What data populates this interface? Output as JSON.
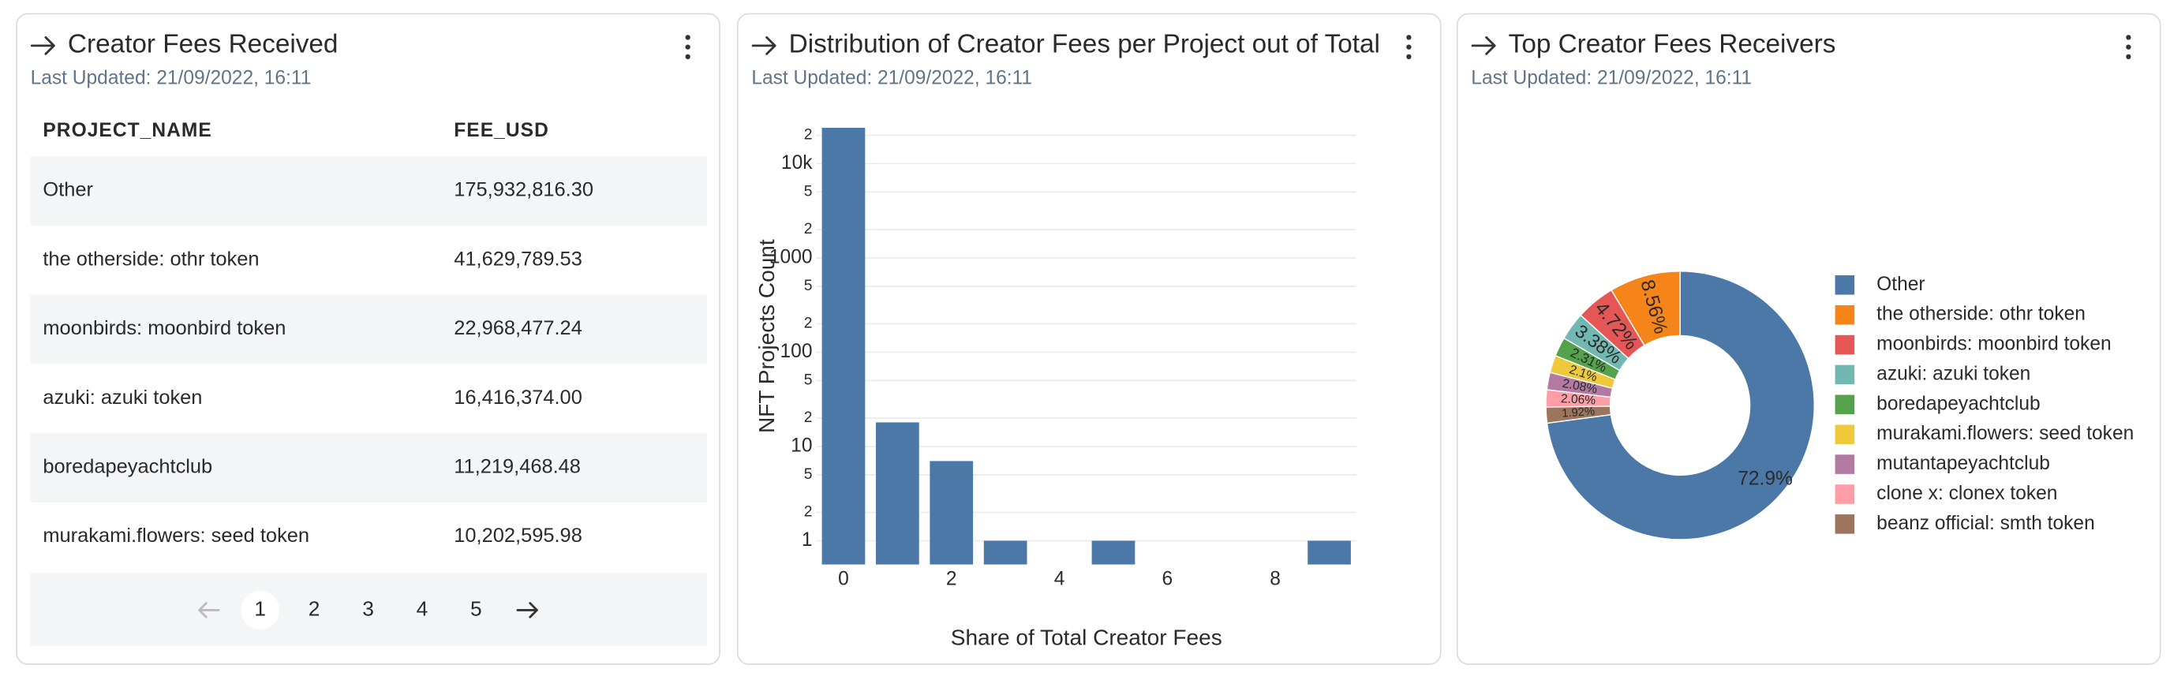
{
  "table": {
    "title": "Creator Fees Received",
    "subtitle": "Last Updated: 21/09/2022, 16:11",
    "columns": [
      "PROJECT_NAME",
      "FEE_USD"
    ],
    "rows": [
      [
        "Other",
        "175,932,816.30"
      ],
      [
        "the otherside: othr token",
        "41,629,789.53"
      ],
      [
        "moonbirds: moonbird token",
        "22,968,477.24"
      ],
      [
        "azuki: azuki token",
        "16,416,374.00"
      ],
      [
        "boredapeyachtclub",
        "11,219,468.48"
      ],
      [
        "murakami.flowers: seed token",
        "10,202,595.98"
      ]
    ],
    "pages": [
      1,
      2,
      3,
      4,
      5
    ],
    "active_page": 1
  },
  "chart_data": [
    {
      "type": "histogram",
      "title": "Distribution of Creator Fees per Project out of Total",
      "subtitle": "Last Updated: 21/09/2022, 16:11",
      "xlabel": "Share of Total Creator Fees",
      "ylabel": "NFT Projects Count",
      "bins": [
        -0.5,
        0.5,
        1.5,
        2.5,
        3.5,
        4.5,
        5.5,
        6.5,
        7.5,
        8.5,
        9.5
      ],
      "counts": [
        24000,
        18,
        7,
        1,
        0,
        1,
        0,
        0,
        0,
        1
      ],
      "color": "#4c78a8",
      "xlim": [
        -0.5,
        9.5
      ],
      "xticks": [
        0,
        2,
        4,
        6,
        8
      ],
      "log_y": true,
      "grid": true,
      "ylim": [
        0.56,
        26000
      ],
      "yticks": [
        1,
        2,
        5,
        10,
        {
          "value": 20,
          "label": "2"
        },
        {
          "value": 50,
          "label": "5"
        },
        100,
        {
          "value": 200,
          "label": "2"
        },
        {
          "value": 500,
          "label": "5"
        },
        1000,
        {
          "value": 2000,
          "label": "2"
        },
        {
          "value": 5000,
          "label": "5"
        },
        {
          "value": 10000,
          "label": "10k"
        },
        {
          "value": 20000,
          "label": "2"
        }
      ]
    },
    {
      "type": "pie",
      "title": "Top Creator Fees Receivers",
      "subtitle": "Last Updated: 21/09/2022, 16:11",
      "categories": [
        "Other",
        "the otherside: othr token",
        "moonbirds: moonbird token",
        "azuki: azuki token",
        "boredapeyachtclub",
        "murakami.flowers: seed token",
        "mutantapeyachtclub",
        "clone x: clonex token",
        "beanz official: smth token"
      ],
      "values": [
        72.9,
        8.56,
        4.72,
        3.38,
        2.31,
        2.1,
        2.08,
        2.06,
        1.92
      ],
      "value_labels": [
        "72.9%",
        "8.56%",
        "4.72%",
        "3.38%",
        "2.31%",
        "2.1%",
        "2.08%",
        "2.06%",
        "1.92%"
      ],
      "colors": [
        "#4c78a8",
        "#f58518",
        "#e45756",
        "#72b7b2",
        "#54a24b",
        "#eeca3b",
        "#b279a2",
        "#ff9da6",
        "#9d755d"
      ],
      "hole": 0.52,
      "direction": "counterclockwise",
      "legend": "right"
    }
  ]
}
